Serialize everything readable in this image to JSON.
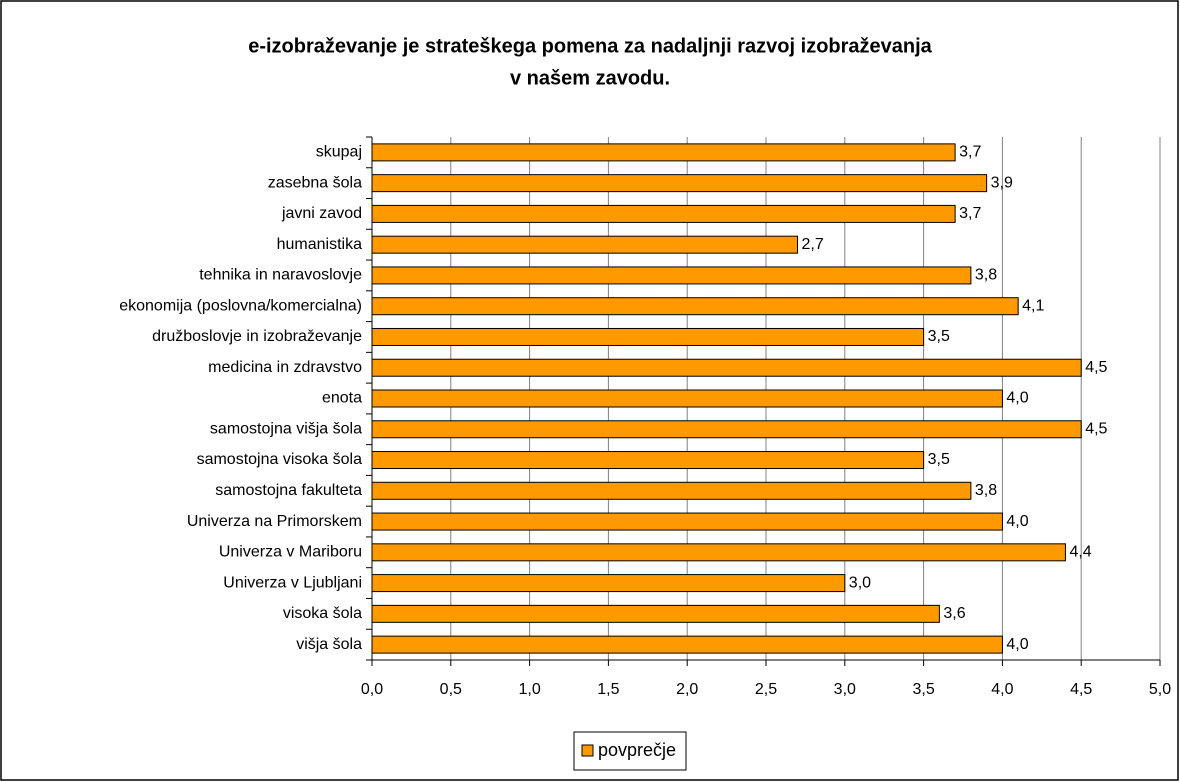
{
  "chart_data": {
    "type": "barh",
    "title": [
      "e-izobraževanje je strateškega pomena za nadaljnji razvoj izobraževanja",
      "v našem zavodu."
    ],
    "categories": [
      "skupaj",
      "zasebna šola",
      "javni zavod",
      "humanistika",
      "tehnika in naravoslovje",
      "ekonomija (poslovna/komercialna)",
      "družboslovje in izobraževanje",
      "medicina in zdravstvo",
      "enota",
      "samostojna višja šola",
      "samostojna visoka šola",
      "samostojna fakulteta",
      "Univerza na Primorskem",
      "Univerza v Mariboru",
      "Univerza v Ljubljani",
      "visoka šola",
      "višja šola"
    ],
    "series": [
      {
        "name": "povprečje",
        "color": "#ff9900",
        "values": [
          3.7,
          3.9,
          3.7,
          2.7,
          3.8,
          4.1,
          3.5,
          4.5,
          4.0,
          4.5,
          3.5,
          3.8,
          4.0,
          4.4,
          3.0,
          3.6,
          4.0
        ],
        "value_labels": [
          "3,7",
          "3,9",
          "3,7",
          "2,7",
          "3,8",
          "4,1",
          "3,5",
          "4,5",
          "4,0",
          "4,5",
          "3,5",
          "3,8",
          "4,0",
          "4,4",
          "3,0",
          "3,6",
          "4,0"
        ]
      }
    ],
    "xlim": [
      0,
      5
    ],
    "xticks": [
      {
        "value": 0,
        "label": "0,0"
      },
      {
        "value": 0.5,
        "label": "0,5"
      },
      {
        "value": 1,
        "label": "1,0"
      },
      {
        "value": 1.5,
        "label": "1,5"
      },
      {
        "value": 2,
        "label": "2,0"
      },
      {
        "value": 2.5,
        "label": "2,5"
      },
      {
        "value": 3,
        "label": "3,0"
      },
      {
        "value": 3.5,
        "label": "3,5"
      },
      {
        "value": 4,
        "label": "4,0"
      },
      {
        "value": 4.5,
        "label": "4,5"
      },
      {
        "value": 5,
        "label": "5,0"
      }
    ],
    "grid": true,
    "legend": "bottom"
  }
}
